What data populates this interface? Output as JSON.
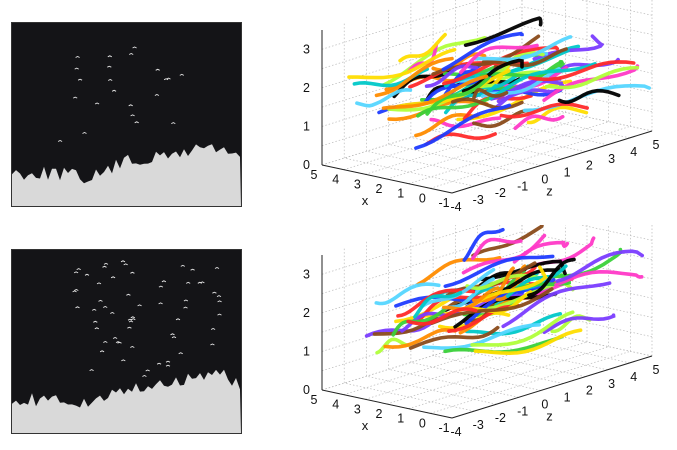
{
  "panels": [
    {
      "id": "top",
      "photo": {
        "content": "night-sky-birds-over-trees",
        "sky_color": "#141417",
        "tree_color": "#d9d9d9",
        "bird_count": 22
      },
      "chart_data": {
        "type": "line-3d",
        "axes": {
          "x": {
            "label": "x",
            "ticks": [
              "-1",
              "0",
              "1",
              "2",
              "3",
              "4",
              "5"
            ],
            "range": [
              -1,
              5
            ]
          },
          "y": {
            "label": "y",
            "ticks": [
              "0",
              "1",
              "2",
              "3"
            ],
            "range": [
              0,
              3.5
            ]
          },
          "z": {
            "label": "z",
            "ticks": [
              "-4",
              "-3",
              "-2",
              "-1",
              "0",
              "1",
              "2",
              "3",
              "4",
              "5"
            ],
            "range": [
              -4,
              5
            ]
          }
        },
        "grid": true,
        "trajectory_count": 70,
        "trajectory_y_range": [
          0.8,
          2.2
        ],
        "colors": [
          "#000000",
          "#1f3cff",
          "#00c8c8",
          "#3ad13a",
          "#ffdd00",
          "#ff8c00",
          "#ff2a2a",
          "#7a3cff",
          "#ff39c7",
          "#8a4b1a",
          "#55d6ff",
          "#b0ff3a"
        ]
      }
    },
    {
      "id": "bottom",
      "photo": {
        "content": "night-sky-birds-over-trees",
        "sky_color": "#141417",
        "tree_color": "#d9d9d9",
        "bird_count": 60
      },
      "chart_data": {
        "type": "line-3d",
        "axes": {
          "x": {
            "label": "x",
            "ticks": [
              "-1",
              "0",
              "1",
              "2",
              "3",
              "4",
              "5"
            ],
            "range": [
              -1,
              5
            ]
          },
          "y": {
            "label": "y",
            "ticks": [
              "0",
              "1",
              "2",
              "3"
            ],
            "range": [
              0,
              3.5
            ]
          },
          "z": {
            "label": "z",
            "ticks": [
              "-4",
              "-3",
              "-2",
              "-1",
              "0",
              "1",
              "2",
              "3",
              "4",
              "5"
            ],
            "range": [
              -4,
              5
            ]
          }
        },
        "grid": true,
        "trajectory_count": 70,
        "trajectory_y_range": [
          1.0,
          2.6
        ],
        "colors": [
          "#000000",
          "#1f3cff",
          "#00c8c8",
          "#3ad13a",
          "#ffdd00",
          "#ff8c00",
          "#ff2a2a",
          "#7a3cff",
          "#ff39c7",
          "#8a4b1a",
          "#55d6ff",
          "#b0ff3a"
        ]
      }
    }
  ]
}
